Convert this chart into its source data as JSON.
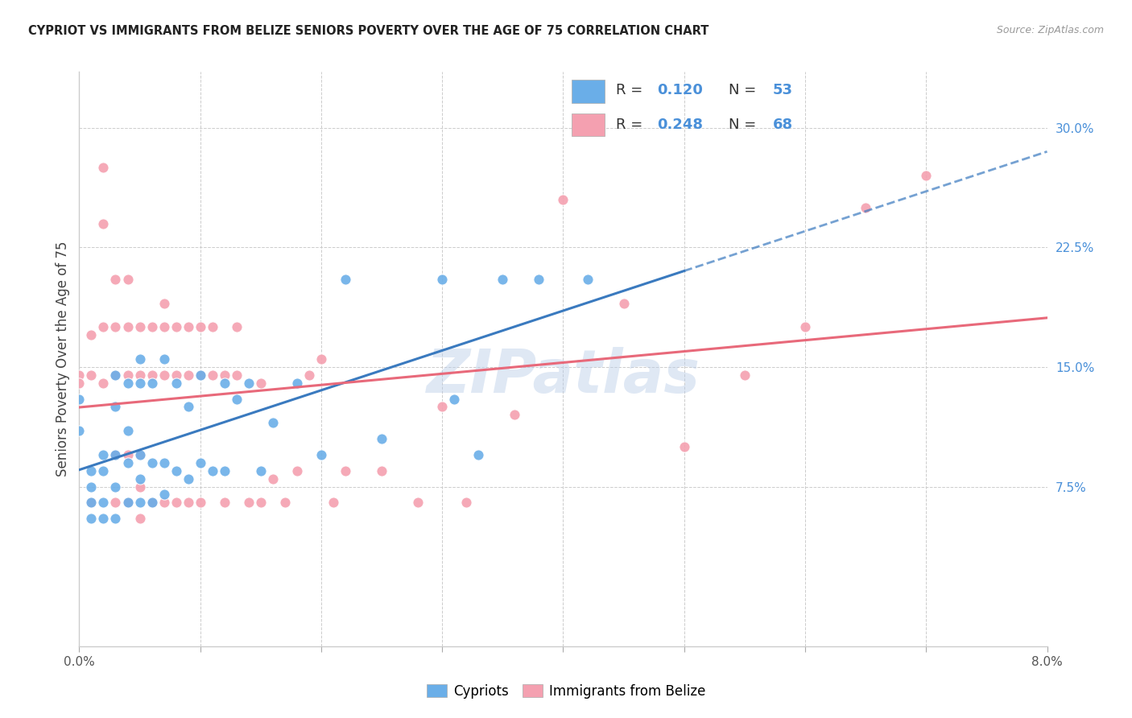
{
  "title": "CYPRIOT VS IMMIGRANTS FROM BELIZE SENIORS POVERTY OVER THE AGE OF 75 CORRELATION CHART",
  "source": "Source: ZipAtlas.com",
  "ylabel": "Seniors Poverty Over the Age of 75",
  "xlim": [
    0.0,
    0.08
  ],
  "ylim": [
    -0.025,
    0.335
  ],
  "xtick_positions": [
    0.0,
    0.01,
    0.02,
    0.03,
    0.04,
    0.05,
    0.06,
    0.07,
    0.08
  ],
  "right_ytick_positions": [
    0.075,
    0.15,
    0.225,
    0.3
  ],
  "right_ytick_labels": [
    "7.5%",
    "15.0%",
    "22.5%",
    "30.0%"
  ],
  "cypriot_color": "#6aaee8",
  "belize_color": "#f4a0b0",
  "cypriot_line_color": "#3a7abf",
  "belize_line_color": "#e8697a",
  "cypriot_R": 0.12,
  "cypriot_N": 53,
  "belize_R": 0.248,
  "belize_N": 68,
  "watermark": "ZIPatlas",
  "legend_label_1": "Cypriots",
  "legend_label_2": "Immigrants from Belize",
  "accent_color": "#4a90d9",
  "cypriot_x": [
    0.0,
    0.0,
    0.001,
    0.001,
    0.001,
    0.001,
    0.002,
    0.002,
    0.002,
    0.002,
    0.003,
    0.003,
    0.003,
    0.003,
    0.003,
    0.004,
    0.004,
    0.004,
    0.004,
    0.005,
    0.005,
    0.005,
    0.005,
    0.005,
    0.006,
    0.006,
    0.006,
    0.007,
    0.007,
    0.007,
    0.008,
    0.008,
    0.009,
    0.009,
    0.01,
    0.01,
    0.011,
    0.012,
    0.012,
    0.013,
    0.014,
    0.015,
    0.016,
    0.018,
    0.02,
    0.022,
    0.025,
    0.03,
    0.031,
    0.033,
    0.035,
    0.038,
    0.042
  ],
  "cypriot_y": [
    0.13,
    0.11,
    0.085,
    0.075,
    0.065,
    0.055,
    0.095,
    0.085,
    0.065,
    0.055,
    0.145,
    0.125,
    0.095,
    0.075,
    0.055,
    0.14,
    0.11,
    0.09,
    0.065,
    0.155,
    0.14,
    0.095,
    0.08,
    0.065,
    0.14,
    0.09,
    0.065,
    0.155,
    0.09,
    0.07,
    0.14,
    0.085,
    0.125,
    0.08,
    0.145,
    0.09,
    0.085,
    0.14,
    0.085,
    0.13,
    0.14,
    0.085,
    0.115,
    0.14,
    0.095,
    0.205,
    0.105,
    0.205,
    0.13,
    0.095,
    0.205,
    0.205,
    0.205
  ],
  "belize_x": [
    0.0,
    0.0,
    0.001,
    0.001,
    0.001,
    0.002,
    0.002,
    0.002,
    0.002,
    0.003,
    0.003,
    0.003,
    0.003,
    0.003,
    0.004,
    0.004,
    0.004,
    0.004,
    0.004,
    0.005,
    0.005,
    0.005,
    0.005,
    0.005,
    0.006,
    0.006,
    0.006,
    0.007,
    0.007,
    0.007,
    0.007,
    0.008,
    0.008,
    0.008,
    0.009,
    0.009,
    0.009,
    0.01,
    0.01,
    0.01,
    0.011,
    0.011,
    0.012,
    0.012,
    0.013,
    0.013,
    0.014,
    0.015,
    0.015,
    0.016,
    0.017,
    0.018,
    0.019,
    0.02,
    0.021,
    0.022,
    0.025,
    0.028,
    0.03,
    0.032,
    0.036,
    0.04,
    0.045,
    0.05,
    0.055,
    0.06,
    0.065,
    0.07
  ],
  "belize_y": [
    0.145,
    0.14,
    0.17,
    0.145,
    0.065,
    0.275,
    0.24,
    0.175,
    0.14,
    0.205,
    0.175,
    0.145,
    0.095,
    0.065,
    0.205,
    0.175,
    0.145,
    0.095,
    0.065,
    0.175,
    0.145,
    0.095,
    0.075,
    0.055,
    0.175,
    0.145,
    0.065,
    0.19,
    0.175,
    0.145,
    0.065,
    0.175,
    0.145,
    0.065,
    0.175,
    0.145,
    0.065,
    0.175,
    0.145,
    0.065,
    0.175,
    0.145,
    0.145,
    0.065,
    0.175,
    0.145,
    0.065,
    0.14,
    0.065,
    0.08,
    0.065,
    0.085,
    0.145,
    0.155,
    0.065,
    0.085,
    0.085,
    0.065,
    0.125,
    0.065,
    0.12,
    0.255,
    0.19,
    0.1,
    0.145,
    0.175,
    0.25,
    0.27
  ]
}
